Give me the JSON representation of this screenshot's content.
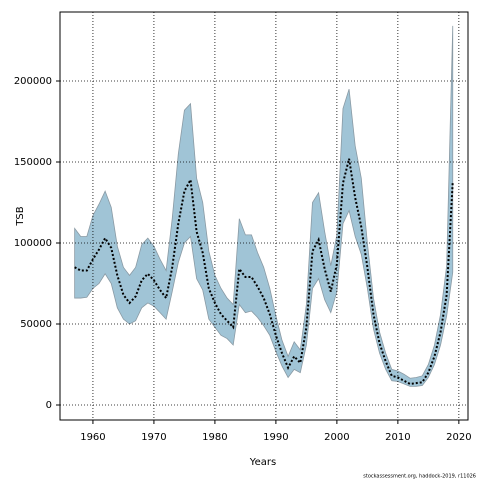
{
  "chart_data": {
    "type": "line",
    "x_label": "Years",
    "y_label": "TSB",
    "credit": "stockassessment.org, haddock-2019, r11026",
    "x": [
      1957,
      1958,
      1959,
      1960,
      1961,
      1962,
      1963,
      1964,
      1965,
      1966,
      1967,
      1968,
      1969,
      1970,
      1971,
      1972,
      1973,
      1974,
      1975,
      1976,
      1977,
      1978,
      1979,
      1980,
      1981,
      1982,
      1983,
      1984,
      1985,
      1986,
      1987,
      1988,
      1989,
      1990,
      1991,
      1992,
      1993,
      1994,
      1995,
      1996,
      1997,
      1998,
      1999,
      2000,
      2001,
      2002,
      2003,
      2004,
      2005,
      2006,
      2007,
      2008,
      2009,
      2010,
      2011,
      2012,
      2013,
      2014,
      2015,
      2016,
      2017,
      2018,
      2019
    ],
    "values": [
      85000,
      83000,
      83000,
      90000,
      96000,
      103000,
      97000,
      80000,
      68000,
      63000,
      67000,
      77000,
      81000,
      77000,
      71000,
      66000,
      85000,
      112000,
      132000,
      139000,
      107000,
      94000,
      72000,
      63000,
      56000,
      52000,
      48000,
      84000,
      79000,
      79000,
      73000,
      66000,
      56000,
      43000,
      32000,
      23000,
      30000,
      26000,
      48000,
      95000,
      102000,
      84000,
      70000,
      87000,
      137000,
      152000,
      128000,
      110000,
      85000,
      56000,
      38000,
      27000,
      18000,
      17000,
      15000,
      13000,
      13500,
      14000,
      20000,
      30000,
      45000,
      68000,
      138000
    ],
    "lower": [
      66000,
      66000,
      66500,
      72000,
      75000,
      81000,
      75000,
      60000,
      53000,
      50000,
      52000,
      60000,
      63000,
      61000,
      57000,
      53000,
      70000,
      88000,
      100000,
      104000,
      78000,
      71000,
      53000,
      48000,
      43000,
      41000,
      37000,
      62000,
      57000,
      58000,
      54000,
      49000,
      43000,
      33000,
      24000,
      17000,
      22000,
      20000,
      37000,
      72000,
      78000,
      65000,
      57000,
      70000,
      112000,
      120000,
      104000,
      93000,
      72000,
      47000,
      32000,
      22000,
      15000,
      14500,
      13000,
      11500,
      11500,
      12000,
      17000,
      25000,
      37000,
      55000,
      82000
    ],
    "upper": [
      109000,
      104000,
      104000,
      117000,
      124000,
      132000,
      122000,
      98000,
      85000,
      80000,
      85000,
      99000,
      103000,
      98000,
      90000,
      83000,
      115000,
      155000,
      182000,
      186000,
      140000,
      125000,
      95000,
      80000,
      72000,
      66000,
      62000,
      115000,
      105000,
      105000,
      94000,
      85000,
      72000,
      55000,
      40000,
      30000,
      39000,
      34000,
      62000,
      125000,
      131000,
      107000,
      86000,
      105000,
      183000,
      195000,
      160000,
      140000,
      100000,
      66000,
      45000,
      32000,
      22000,
      21000,
      19000,
      16500,
      17000,
      18000,
      25000,
      37000,
      56000,
      86000,
      234000
    ],
    "color": "#000000",
    "band_color": "#a0c4d6",
    "band_edge": "#8a9aa4",
    "xlim": [
      1954.6,
      2021.5
    ],
    "xticks": [
      1960,
      1970,
      1980,
      1990,
      2000,
      2010,
      2020
    ],
    "ylim": [
      -9260,
      242600
    ],
    "yticks": [
      0,
      50000,
      100000,
      150000,
      200000
    ],
    "grid": true
  }
}
